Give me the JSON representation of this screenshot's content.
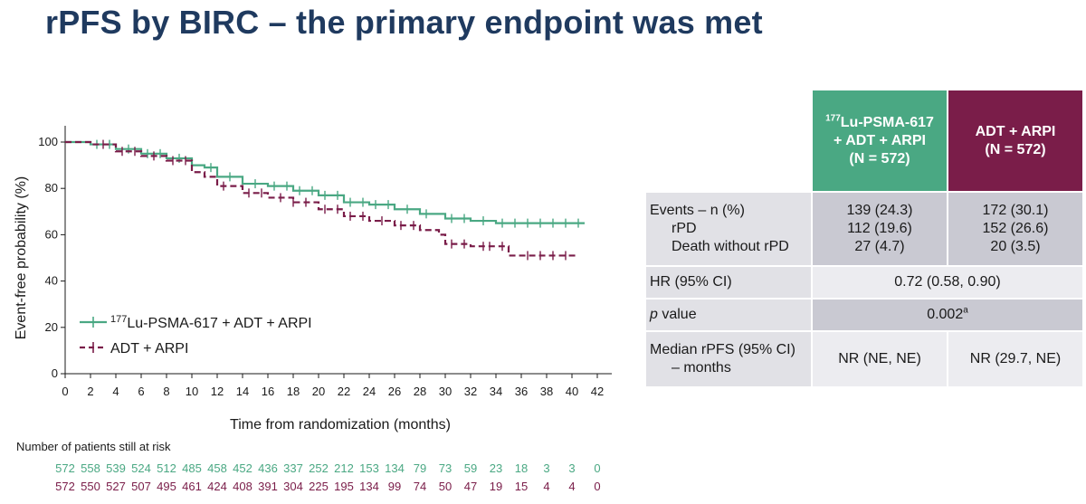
{
  "page": {
    "title": "rPFS by BIRC – the primary endpoint was met"
  },
  "chart_data": {
    "type": "line",
    "ylabel": "Event-free probability (%)",
    "xlabel": "Time from randomization (months)",
    "xlim": [
      0,
      42
    ],
    "ylim": [
      0,
      100
    ],
    "xticks": [
      0,
      2,
      4,
      6,
      8,
      10,
      12,
      14,
      16,
      18,
      20,
      22,
      24,
      26,
      28,
      30,
      32,
      34,
      36,
      38,
      40,
      42
    ],
    "yticks": [
      0,
      20,
      40,
      60,
      80,
      100
    ],
    "grid": false,
    "legend_position": "bottom-left",
    "series": [
      {
        "name_sup": "177",
        "name": "Lu-PSMA-617 + ADT + ARPI",
        "color": "#4aa883",
        "style": "solid",
        "x": [
          0,
          2,
          4,
          6,
          8,
          10,
          11,
          12,
          14,
          16,
          18,
          20,
          22,
          24,
          26,
          28,
          30,
          32,
          34,
          36,
          38,
          40,
          41
        ],
        "y": [
          100,
          99,
          97,
          95,
          93,
          90,
          89,
          85,
          82,
          81,
          79,
          77,
          74,
          73,
          71,
          69,
          67,
          66,
          65,
          65,
          65,
          65,
          65
        ],
        "censor_x": [
          2.5,
          3.5,
          5,
          6.5,
          7.5,
          9,
          11.5,
          13,
          15,
          16.5,
          17.5,
          18.5,
          19.5,
          20.5,
          21.5,
          22.5,
          23.5,
          24.5,
          25.5,
          27,
          28.5,
          30.5,
          31.5,
          33,
          34.5,
          35.5,
          36.5,
          37.5,
          38.5,
          39.5,
          40.5
        ]
      },
      {
        "name": "ADT + ARPI",
        "color": "#7a1d49",
        "style": "dashed",
        "x": [
          0,
          2,
          4,
          6,
          8,
          10,
          11,
          12,
          14,
          16,
          18,
          20,
          22,
          24,
          26,
          28,
          29.5,
          30,
          32,
          34,
          35,
          36,
          38,
          40.5
        ],
        "y": [
          100,
          99,
          96,
          94,
          92,
          87,
          85,
          81,
          78,
          76,
          74,
          71,
          68,
          66,
          64,
          62,
          60,
          56,
          55,
          55,
          51,
          51,
          51,
          51
        ],
        "censor_x": [
          3,
          4.5,
          5.5,
          7,
          8.5,
          9.5,
          12.5,
          14.5,
          15.5,
          17,
          18,
          19,
          20.5,
          21.5,
          22.5,
          23.5,
          25,
          26.5,
          27.5,
          30.5,
          31.5,
          33,
          33.5,
          34.5,
          36.5,
          37.5,
          38.5,
          39.5
        ]
      }
    ],
    "risk_table": {
      "title": "Number of patients still at risk",
      "times": [
        0,
        2,
        4,
        6,
        8,
        10,
        12,
        14,
        16,
        18,
        20,
        22,
        24,
        26,
        28,
        30,
        32,
        34,
        36,
        38,
        40,
        42
      ],
      "rows": [
        {
          "color": "#4aa883",
          "counts": [
            "572",
            "558",
            "539",
            "524",
            "512",
            "485",
            "458",
            "452",
            "436",
            "337",
            "252",
            "212",
            "153",
            "134",
            "79",
            "73",
            "59",
            "23",
            "18",
            "3",
            "3",
            "0"
          ]
        },
        {
          "color": "#7a1d49",
          "counts": [
            "572",
            "550",
            "527",
            "507",
            "495",
            "461",
            "424",
            "408",
            "391",
            "304",
            "225",
            "195",
            "134",
            "99",
            "74",
            "50",
            "47",
            "19",
            "15",
            "4",
            "4",
            "0"
          ]
        }
      ]
    }
  },
  "table": {
    "col_a": {
      "sup": "177",
      "line1": "Lu-PSMA-617",
      "line2": "+ ADT + ARPI",
      "line3": "(N = 572)"
    },
    "col_b": {
      "line1": "ADT + ARPI",
      "line2": "(N = 572)"
    },
    "events": {
      "label": "Events – n (%)",
      "rpd_label": "rPD",
      "death_label": "Death without rPD",
      "a": "139 (24.3)",
      "a_rpd": "112 (19.6)",
      "a_death": "27 (4.7)",
      "b": "172 (30.1)",
      "b_rpd": "152 (26.6)",
      "b_death": "20 (3.5)"
    },
    "hr": {
      "label": "HR (95% CI)",
      "value": "0.72 (0.58, 0.90)"
    },
    "pval": {
      "label_ital": "p",
      "label_rest": " value",
      "value": "0.002",
      "value_sup": "a"
    },
    "median": {
      "label1": "Median rPFS (95% CI)",
      "label2": "– months",
      "a": "NR (NE, NE)",
      "b": "NR (29.7, NE)"
    }
  }
}
